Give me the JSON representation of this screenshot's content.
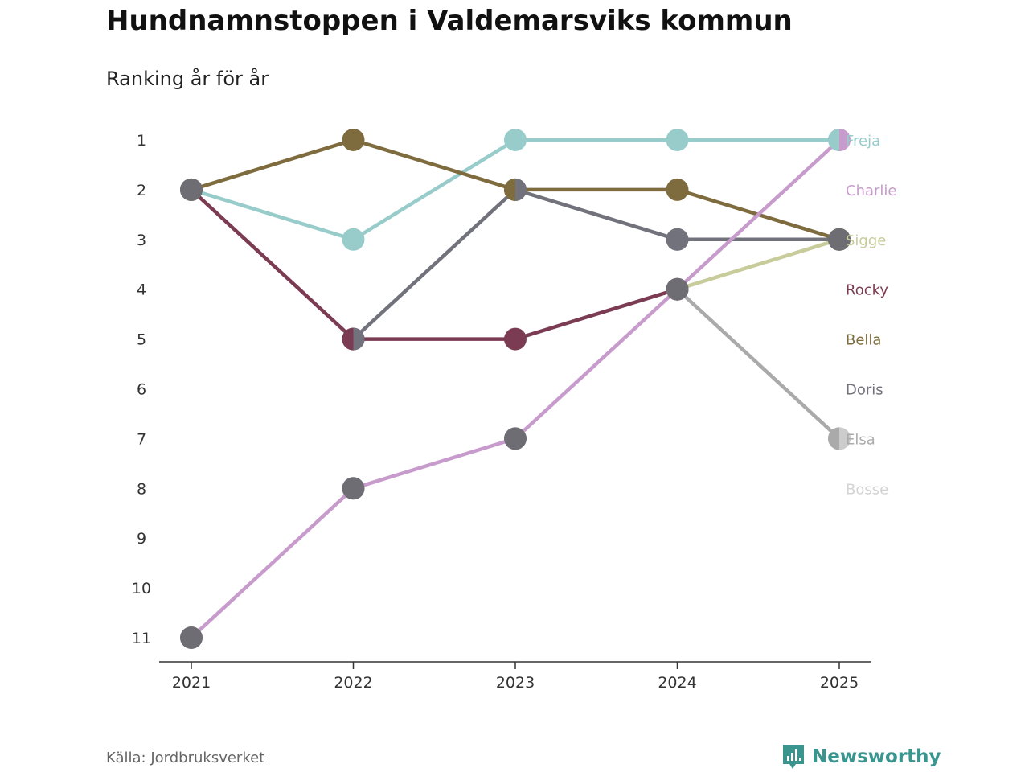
{
  "header": {
    "title": "Hundnamnstoppen i Valdemarsviks kommun",
    "subtitle": "Ranking år för år"
  },
  "footer": {
    "source": "Källa: Jordbruksverket",
    "brand": "Newsworthy"
  },
  "colors": {
    "axis": "#333333",
    "tick_text": "#333333",
    "brand": "#3a958f"
  },
  "chart_data": {
    "type": "line",
    "title": "Hundnamnstoppen i Valdemarsviks kommun",
    "subtitle": "Ranking år för år",
    "x": [
      "2021",
      "2022",
      "2023",
      "2024",
      "2025"
    ],
    "y_ticks": [
      "1",
      "2",
      "3",
      "4",
      "5",
      "6",
      "7",
      "8",
      "9",
      "10",
      "11"
    ],
    "ylim": [
      1,
      11
    ],
    "y_inverted": true,
    "xlabel": "",
    "ylabel": "",
    "series": [
      {
        "name": "Elsa",
        "color": "#aaaaaa",
        "values": [
          null,
          null,
          null,
          4,
          7
        ]
      },
      {
        "name": "Sigge",
        "color": "#c8cc9a",
        "values": [
          null,
          null,
          null,
          4,
          3
        ]
      },
      {
        "name": "Doris",
        "color": "#72727c",
        "values": [
          null,
          5,
          2,
          3,
          3
        ]
      },
      {
        "name": "Rocky",
        "color": "#7b3b52",
        "values": [
          2,
          5,
          5,
          4,
          null
        ]
      },
      {
        "name": "Freja",
        "color": "#98cccb",
        "values": [
          2,
          3,
          1,
          1,
          1
        ]
      },
      {
        "name": "Bella",
        "color": "#7e6c3e",
        "values": [
          2,
          1,
          2,
          2,
          3
        ]
      },
      {
        "name": "Charlie",
        "color": "#c79ccc",
        "values": [
          11,
          8,
          7,
          4,
          1
        ]
      }
    ],
    "shared_markers": [
      {
        "x": "2021",
        "y": 11,
        "color": "#6d6d73"
      },
      {
        "x": "2021",
        "y": 2,
        "color": "#6d6d73"
      },
      {
        "x": "2022",
        "y": 8,
        "color": "#6d6d73"
      },
      {
        "x": "2023",
        "y": 7,
        "color": "#6d6d73"
      },
      {
        "x": "2024",
        "y": 4,
        "color": "#6d6d73"
      },
      {
        "x": "2024",
        "y": 3,
        "color": "#72727c"
      },
      {
        "x": "2025",
        "y": 3,
        "color": "#6d6d73"
      }
    ],
    "split_markers": [
      {
        "x": "2022",
        "y": 5,
        "left": "#7b3b52",
        "right": "#72727c"
      },
      {
        "x": "2023",
        "y": 2,
        "left": "#7e6c3e",
        "right": "#72727c"
      },
      {
        "x": "2025",
        "y": 1,
        "left": "#98cccb",
        "right": "#c79ccc"
      },
      {
        "x": "2025",
        "y": 7,
        "left": "#aaaaaa",
        "right": "#cccccc"
      }
    ],
    "legend": [
      {
        "label": "Freja",
        "color": "#98cccb"
      },
      {
        "label": "Charlie",
        "color": "#c79ccc"
      },
      {
        "label": "Sigge",
        "color": "#c8cc9a"
      },
      {
        "label": "Rocky",
        "color": "#7b3b52"
      },
      {
        "label": "Bella",
        "color": "#7e6c3e"
      },
      {
        "label": "Doris",
        "color": "#72727c"
      },
      {
        "label": "Elsa",
        "color": "#aaaaaa"
      },
      {
        "label": "Bosse",
        "color": "#d3d3d3"
      }
    ],
    "legend_placement": "right"
  }
}
